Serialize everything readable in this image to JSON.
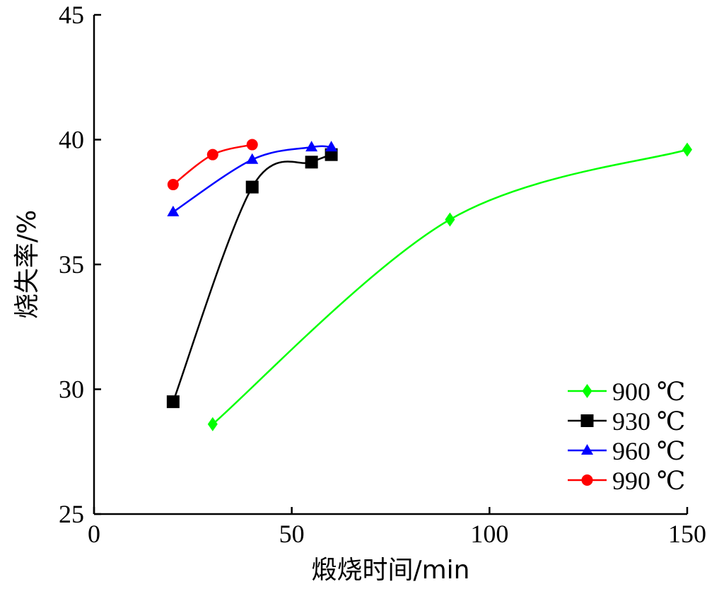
{
  "chart_data": {
    "type": "line",
    "title": "",
    "xlabel": "煅烧时间/min",
    "ylabel": "烧失率/%",
    "xlim": [
      0,
      150
    ],
    "ylim": [
      25,
      45
    ],
    "xticks": [
      0,
      50,
      100,
      150
    ],
    "yticks": [
      25,
      30,
      35,
      40,
      45
    ],
    "grid": false,
    "legend_position": "bottom-right",
    "series": [
      {
        "name": "900 ℃",
        "color": "#00ff00",
        "marker": "diamond",
        "x": [
          30,
          90,
          150
        ],
        "y": [
          28.6,
          36.8,
          39.6
        ]
      },
      {
        "name": "930 ℃",
        "color": "#000000",
        "marker": "square",
        "x": [
          20,
          40,
          55,
          60
        ],
        "y": [
          29.5,
          38.1,
          39.1,
          39.4
        ]
      },
      {
        "name": "960 ℃",
        "color": "#0000ff",
        "marker": "triangle",
        "x": [
          20,
          40,
          55,
          60
        ],
        "y": [
          37.1,
          39.2,
          39.7,
          39.7
        ]
      },
      {
        "name": "990 ℃",
        "color": "#ff0000",
        "marker": "circle",
        "x": [
          20,
          30,
          40
        ],
        "y": [
          38.2,
          39.4,
          39.8
        ]
      }
    ]
  }
}
